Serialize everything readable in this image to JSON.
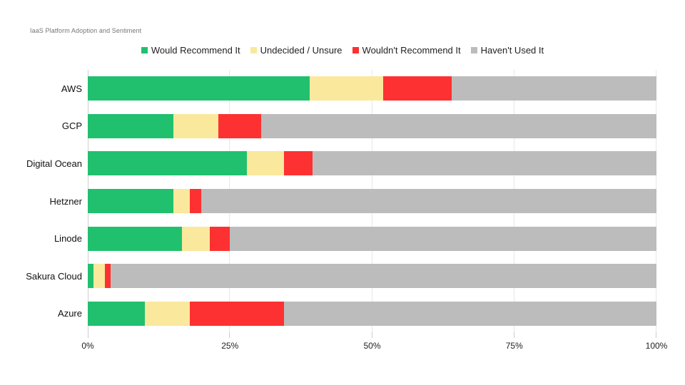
{
  "title": "IaaS Platform Adoption and Sentiment",
  "chart_data": {
    "type": "bar",
    "orientation": "horizontal",
    "stacked": true,
    "title": "IaaS Platform Adoption and Sentiment",
    "categories": [
      "AWS",
      "GCP",
      "Digital Ocean",
      "Hetzner",
      "Linode",
      "Sakura Cloud",
      "Azure"
    ],
    "series": [
      {
        "name": "Would Recommend It",
        "color": "#21c06e",
        "values": [
          39,
          15,
          28,
          15,
          16.5,
          1,
          10
        ]
      },
      {
        "name": "Undecided / Unsure",
        "color": "#fae89c",
        "values": [
          13,
          8,
          6.5,
          3,
          5,
          2,
          8
        ]
      },
      {
        "name": "Wouldn't Recommend It",
        "color": "#fd3131",
        "values": [
          12,
          7.5,
          5,
          2,
          3.5,
          1,
          16.5
        ]
      },
      {
        "name": "Haven't Used It",
        "color": "#bcbcbc",
        "values": [
          36,
          69.5,
          60.5,
          80,
          75,
          96,
          65.5
        ]
      }
    ],
    "xlabel": "",
    "ylabel": "",
    "xlim": [
      0,
      100
    ],
    "x_ticks": [
      {
        "value": 0,
        "label": "0%"
      },
      {
        "value": 25,
        "label": "25%"
      },
      {
        "value": 50,
        "label": "50%"
      },
      {
        "value": 75,
        "label": "75%"
      },
      {
        "value": 100,
        "label": "100%"
      }
    ],
    "grid": "vertical",
    "legend_position": "top"
  }
}
